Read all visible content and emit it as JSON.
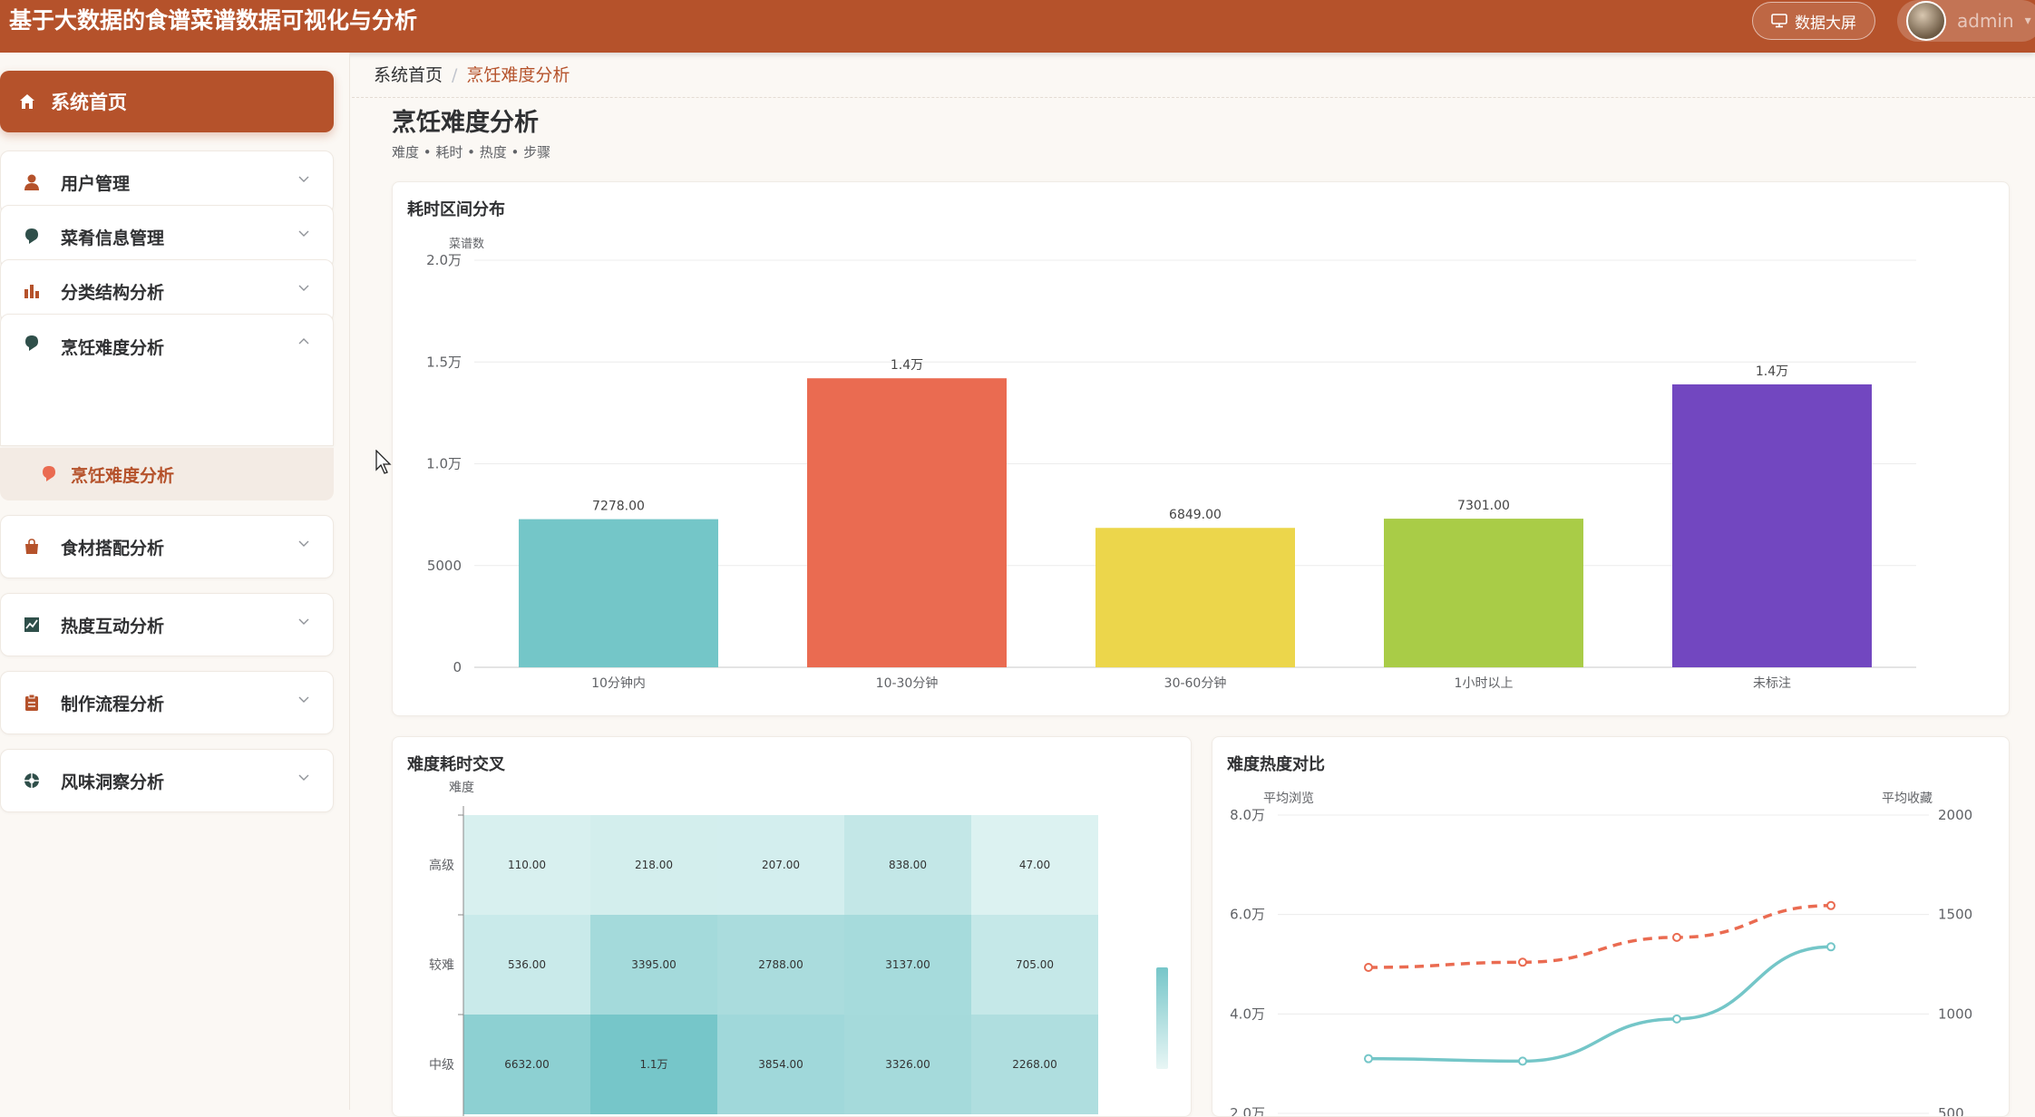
{
  "header": {
    "title": "基于大数据的食谱菜谱数据可视化与分析",
    "bigscreen_label": "数据大屏",
    "username": "admin"
  },
  "sidebar": {
    "home_label": "系统首页",
    "items": [
      {
        "label": "用户管理",
        "icon": "user-icon"
      },
      {
        "label": "菜肴信息管理",
        "icon": "bulb-icon"
      },
      {
        "label": "分类结构分析",
        "icon": "bar-chart-icon"
      },
      {
        "label": "烹饪难度分析",
        "icon": "bulb-icon"
      },
      {
        "label": "食材搭配分析",
        "icon": "bag-icon"
      },
      {
        "label": "热度互动分析",
        "icon": "trend-icon"
      },
      {
        "label": "制作流程分析",
        "icon": "clipboard-icon"
      },
      {
        "label": "风味洞察分析",
        "icon": "flower-icon"
      }
    ],
    "active_sub_label": "烹饪难度分析"
  },
  "breadcrumb": {
    "home": "系统首页",
    "sep": "/",
    "current": "烹饪难度分析"
  },
  "page": {
    "title": "烹饪难度分析",
    "subtitle": "难度 • 耗时 • 热度 • 步骤"
  },
  "colors": {
    "accent": "#b5522b",
    "teal": "#74c6c8",
    "red": "#ea6b51",
    "yellow": "#ecd64b",
    "green": "#a9cc47",
    "purple": "#7247c0"
  },
  "chart_data": [
    {
      "type": "bar",
      "title": "耗时区间分布",
      "ylabel": "菜谱数",
      "categories": [
        "10分钟内",
        "10-30分钟",
        "30-60分钟",
        "1小时以上",
        "未标注"
      ],
      "values": [
        7278,
        14200,
        6849,
        7301,
        13900
      ],
      "data_labels": [
        "7278.00",
        "1.4万",
        "6849.00",
        "7301.00",
        "1.4万"
      ],
      "colors": [
        "#74c6c8",
        "#ea6b51",
        "#ecd64b",
        "#a9cc47",
        "#7247c0"
      ],
      "ylim": [
        0,
        20000
      ],
      "yticks": [
        0,
        5000,
        10000,
        15000,
        20000
      ],
      "ytick_labels": [
        "0",
        "5000",
        "1.0万",
        "1.5万",
        "2.0万"
      ]
    },
    {
      "type": "heatmap",
      "title": "难度耗时交叉",
      "ylabel": "难度",
      "rows": [
        "高级",
        "较难",
        "中级"
      ],
      "values": [
        [
          110,
          218,
          207,
          838,
          47
        ],
        [
          536,
          3395,
          2788,
          3137,
          705
        ],
        [
          6632,
          11000,
          3854,
          3326,
          2268
        ]
      ],
      "cell_labels": [
        [
          "110.00",
          "218.00",
          "207.00",
          "838.00",
          "47.00"
        ],
        [
          "536.00",
          "3395.00",
          "2788.00",
          "3137.00",
          "705.00"
        ],
        [
          "6632.00",
          "1.1万",
          "3854.00",
          "3326.00",
          "2268.00"
        ]
      ]
    },
    {
      "type": "line",
      "title": "难度热度对比",
      "ylabel_left": "平均浏览",
      "ylabel_right": "平均收藏",
      "left_ticks": [
        "8.0万",
        "6.0万",
        "4.0万",
        "2.0万"
      ],
      "right_ticks": [
        "2000",
        "1500",
        "1000",
        "500"
      ],
      "ylim_left": [
        20000,
        80000
      ],
      "ylim_right": [
        500,
        2000
      ],
      "series": [
        {
          "values": [
            31000,
            30500,
            39000,
            53500
          ],
          "axis": "left",
          "style": "solid",
          "color": "#74c6c8"
        },
        {
          "values": [
            1234,
            1260,
            1385,
            1545
          ],
          "axis": "right",
          "style": "dashed",
          "color": "#ea6b51"
        }
      ]
    }
  ]
}
